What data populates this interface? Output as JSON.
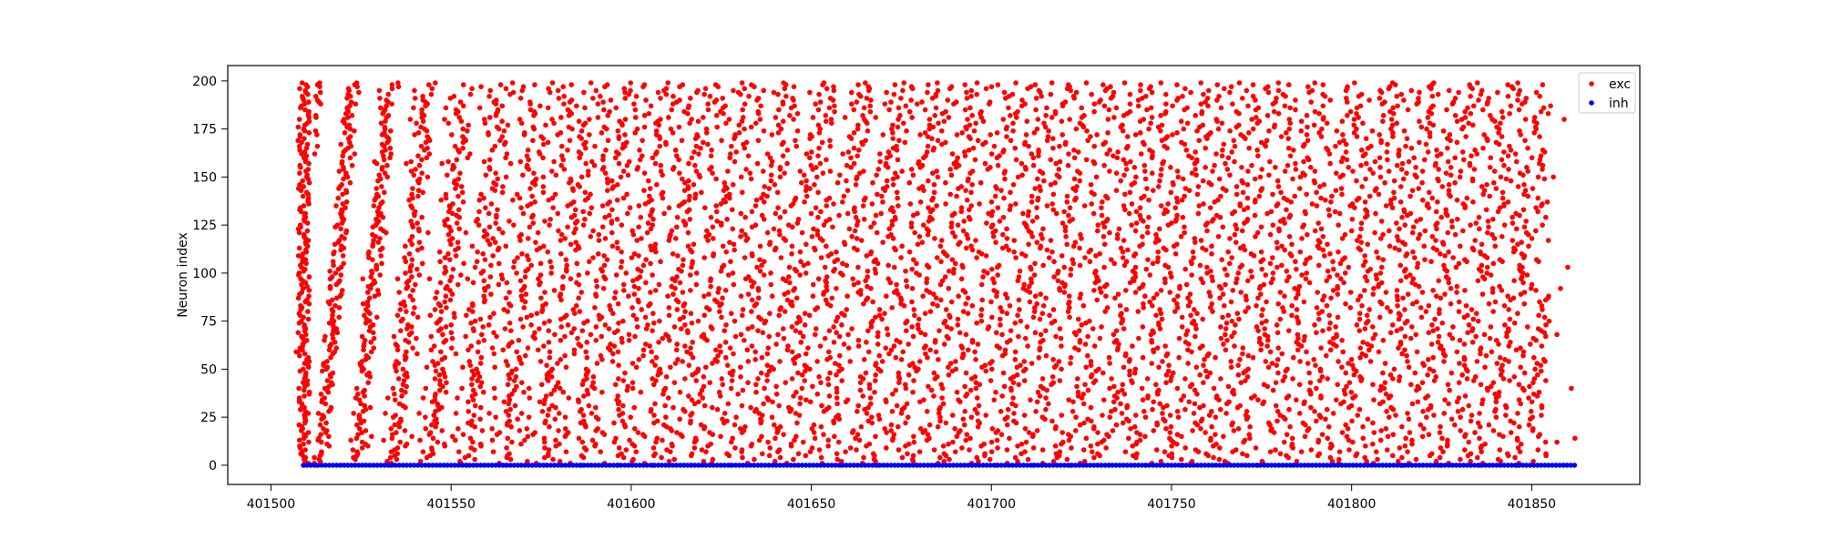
{
  "chart_data": {
    "type": "scatter",
    "title": "",
    "xlabel": "",
    "ylabel": "Neuron index",
    "xlim": [
      401488,
      401880
    ],
    "ylim": [
      -10,
      208
    ],
    "x_ticks": [
      401500,
      401550,
      401600,
      401650,
      401700,
      401750,
      401800,
      401850
    ],
    "y_ticks": [
      0,
      25,
      50,
      75,
      100,
      125,
      150,
      175,
      200
    ],
    "grid": false,
    "legend_position": "top-right",
    "spike_time_range": [
      401506,
      401862
    ],
    "series": [
      {
        "name": "exc",
        "color": "#ff0000",
        "neuron_index_range": [
          0,
          199
        ],
        "approx_spike_count": 7000
      },
      {
        "name": "inh",
        "color": "#0000ff",
        "neuron_index_range": [
          0,
          0
        ],
        "approx_spike_count": 350
      }
    ]
  }
}
